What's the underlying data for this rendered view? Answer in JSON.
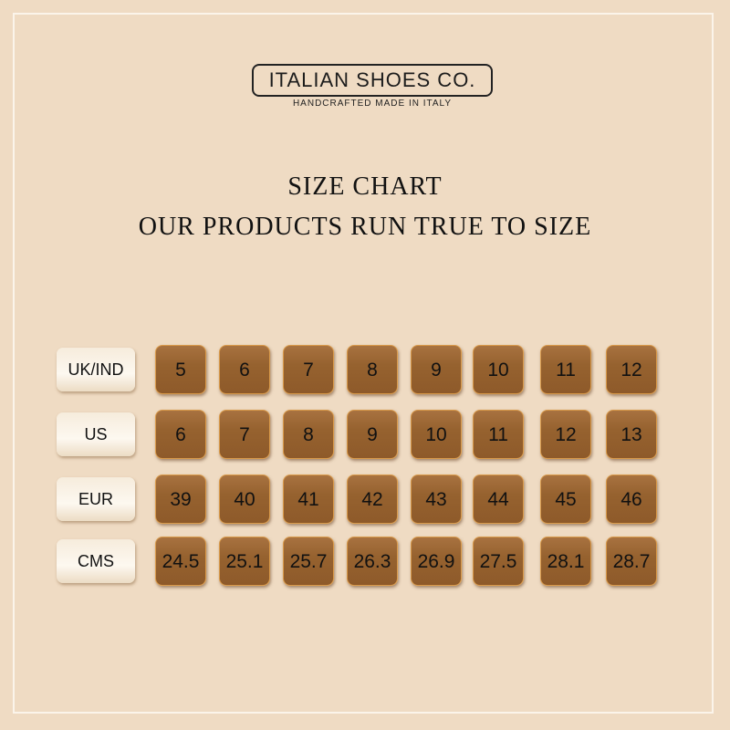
{
  "brand": {
    "name": "ITALIAN SHOES CO.",
    "tagline": "HANDCRAFTED MADE IN ITALY"
  },
  "title": "SIZE CHART",
  "subtitle": "OUR PRODUCTS RUN TRUE TO SIZE",
  "colors": {
    "background": "#efdbc3",
    "tile": "#96622f",
    "tile_border": "#d99a4a",
    "label_bg": "#fdf8f0"
  },
  "rows": [
    {
      "label": "UK/IND",
      "values": [
        "5",
        "6",
        "7",
        "8",
        "9",
        "10",
        "11",
        "12"
      ]
    },
    {
      "label": "US",
      "values": [
        "6",
        "7",
        "8",
        "9",
        "10",
        "11",
        "12",
        "13"
      ]
    },
    {
      "label": "EUR",
      "values": [
        "39",
        "40",
        "41",
        "42",
        "43",
        "44",
        "45",
        "46"
      ]
    },
    {
      "label": "CMS",
      "values": [
        "24.5",
        "25.1",
        "25.7",
        "26.3",
        "26.9",
        "27.5",
        "28.1",
        "28.7"
      ]
    }
  ]
}
